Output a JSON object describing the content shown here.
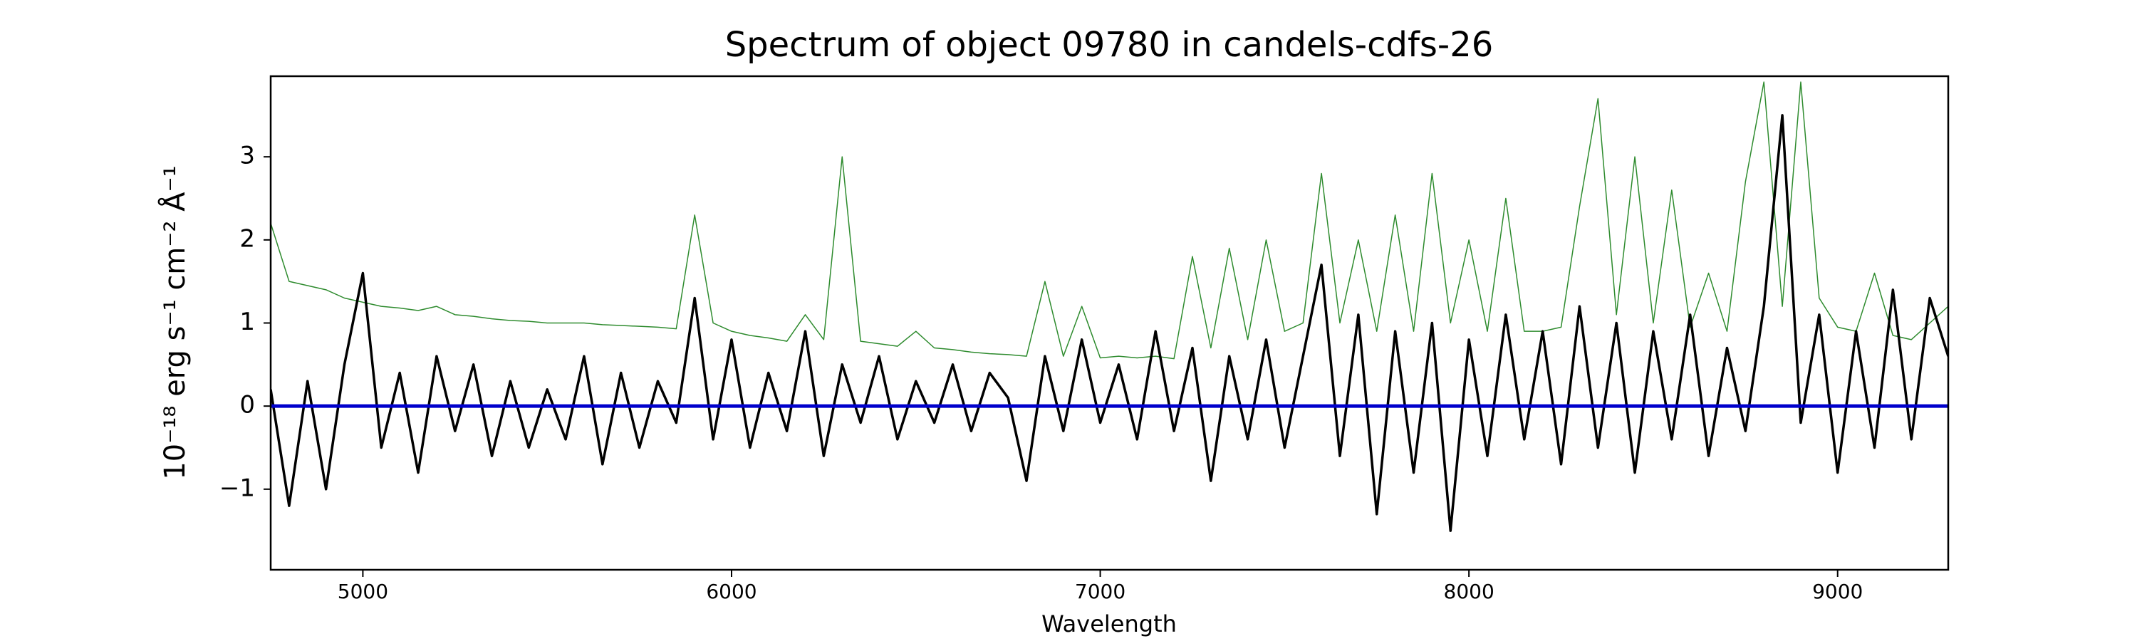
{
  "chart_data": {
    "type": "line",
    "title": "Spectrum of object 09780 in candels-cdfs-26",
    "x_label": "Wavelength",
    "y_label": "10⁻¹⁸ erg s⁻¹ cm⁻² Å⁻¹",
    "xlim": [
      4750,
      9300
    ],
    "ylim": [
      -1.97,
      3.97
    ],
    "xticks": [
      5000,
      6000,
      7000,
      8000,
      9000
    ],
    "yticks": [
      {
        "value": -1,
        "label": "−1"
      },
      0,
      1,
      2,
      3
    ],
    "series": [
      {
        "color": "#2e8b2e",
        "width": 1.5,
        "x": [
          4750,
          4800,
          4850,
          4900,
          4950,
          5000,
          5050,
          5100,
          5150,
          5200,
          5250,
          5300,
          5350,
          5400,
          5450,
          5500,
          5550,
          5600,
          5650,
          5700,
          5750,
          5800,
          5850,
          5900,
          5950,
          6000,
          6050,
          6100,
          6150,
          6200,
          6250,
          6300,
          6350,
          6400,
          6450,
          6500,
          6550,
          6600,
          6650,
          6700,
          6750,
          6800,
          6850,
          6900,
          6950,
          7000,
          7050,
          7100,
          7150,
          7200,
          7250,
          7300,
          7350,
          7400,
          7450,
          7500,
          7550,
          7600,
          7650,
          7700,
          7750,
          7800,
          7850,
          7900,
          7950,
          8000,
          8050,
          8100,
          8150,
          8200,
          8250,
          8300,
          8350,
          8400,
          8450,
          8500,
          8550,
          8600,
          8650,
          8700,
          8750,
          8800,
          8850,
          8900,
          8950,
          9000,
          9050,
          9100,
          9150,
          9200,
          9250,
          9300
        ],
        "values": [
          2.2,
          1.5,
          1.45,
          1.4,
          1.3,
          1.25,
          1.2,
          1.18,
          1.15,
          1.2,
          1.1,
          1.08,
          1.05,
          1.03,
          1.02,
          1.0,
          1.0,
          1.0,
          0.98,
          0.97,
          0.96,
          0.95,
          0.93,
          2.3,
          1.0,
          0.9,
          0.85,
          0.82,
          0.78,
          1.1,
          0.8,
          3.0,
          0.78,
          0.75,
          0.72,
          0.9,
          0.7,
          0.68,
          0.65,
          0.63,
          0.62,
          0.6,
          1.5,
          0.6,
          1.2,
          0.58,
          0.6,
          0.58,
          0.6,
          0.57,
          1.8,
          0.7,
          1.9,
          0.8,
          2.0,
          0.9,
          1.0,
          2.8,
          1.0,
          2.0,
          0.9,
          2.3,
          0.9,
          2.8,
          1.0,
          2.0,
          0.9,
          2.5,
          0.9,
          0.9,
          0.95,
          2.4,
          3.7,
          1.1,
          3.0,
          1.0,
          2.6,
          0.95,
          1.6,
          0.9,
          2.7,
          3.9,
          1.2,
          3.9,
          1.3,
          0.95,
          0.9,
          1.6,
          0.85,
          0.8,
          1.0,
          1.2
        ]
      },
      {
        "color": "#000000",
        "width": 3.5,
        "x": [
          4750,
          4800,
          4850,
          4900,
          4950,
          5000,
          5050,
          5100,
          5150,
          5200,
          5250,
          5300,
          5350,
          5400,
          5450,
          5500,
          5550,
          5600,
          5650,
          5700,
          5750,
          5800,
          5850,
          5900,
          5950,
          6000,
          6050,
          6100,
          6150,
          6200,
          6250,
          6300,
          6350,
          6400,
          6450,
          6500,
          6550,
          6600,
          6650,
          6700,
          6750,
          6800,
          6850,
          6900,
          6950,
          7000,
          7050,
          7100,
          7150,
          7200,
          7250,
          7300,
          7350,
          7400,
          7450,
          7500,
          7550,
          7600,
          7650,
          7700,
          7750,
          7800,
          7850,
          7900,
          7950,
          8000,
          8050,
          8100,
          8150,
          8200,
          8250,
          8300,
          8350,
          8400,
          8450,
          8500,
          8550,
          8600,
          8650,
          8700,
          8750,
          8800,
          8850,
          8900,
          8950,
          9000,
          9050,
          9100,
          9150,
          9200,
          9250,
          9300
        ],
        "values": [
          0.2,
          -1.2,
          0.3,
          -1.0,
          0.5,
          1.6,
          -0.5,
          0.4,
          -0.8,
          0.6,
          -0.3,
          0.5,
          -0.6,
          0.3,
          -0.5,
          0.2,
          -0.4,
          0.6,
          -0.7,
          0.4,
          -0.5,
          0.3,
          -0.2,
          1.3,
          -0.4,
          0.8,
          -0.5,
          0.4,
          -0.3,
          0.9,
          -0.6,
          0.5,
          -0.2,
          0.6,
          -0.4,
          0.3,
          -0.2,
          0.5,
          -0.3,
          0.4,
          0.1,
          -0.9,
          0.6,
          -0.3,
          0.8,
          -0.2,
          0.5,
          -0.4,
          0.9,
          -0.3,
          0.7,
          -0.9,
          0.6,
          -0.4,
          0.8,
          -0.5,
          0.6,
          1.7,
          -0.6,
          1.1,
          -1.3,
          0.9,
          -0.8,
          1.0,
          -1.5,
          0.8,
          -0.6,
          1.1,
          -0.4,
          0.9,
          -0.7,
          1.2,
          -0.5,
          1.0,
          -0.8,
          0.9,
          -0.4,
          1.1,
          -0.6,
          0.7,
          -0.3,
          1.2,
          3.5,
          -0.2,
          1.1,
          -0.8,
          0.9,
          -0.5,
          1.4,
          -0.4,
          1.3,
          0.6
        ]
      },
      {
        "color": "#0000cc",
        "width": 5,
        "x": [
          4750,
          9300
        ],
        "values": [
          0,
          0
        ]
      }
    ]
  }
}
